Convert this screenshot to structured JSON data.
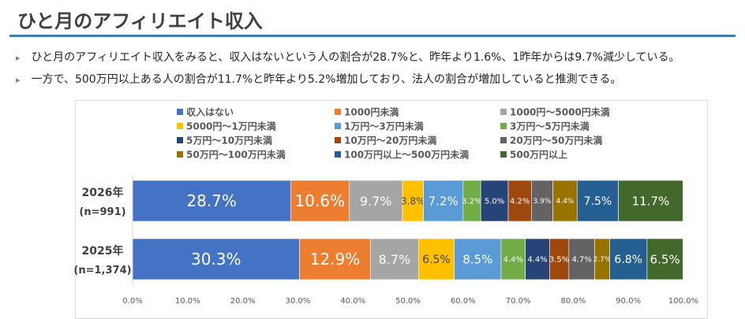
{
  "title": "ひと月のアフィリエイト収入",
  "bullets": [
    "ひと月のアフィリエイト収入をみると、収入はないという人の割合が28.7%と、昨年より1.6%、1昨年からは9.7%減少している。",
    "一方で、500万円以上ある人の割合が11.7%と昨年より5.2%増加しており、法人の割合が増加していると推測できる。"
  ],
  "bullet_mark": "▸",
  "chart_data": {
    "type": "bar",
    "orientation": "horizontal",
    "stacked": true,
    "categories": [
      {
        "label": "2026年",
        "sublabel": "(n=991)"
      },
      {
        "label": "2025年",
        "sublabel": "(n=1,374)"
      }
    ],
    "series": [
      {
        "name": "収入はない",
        "color": "#4472c4",
        "values": [
          28.7,
          30.3
        ],
        "label_color": "#ffffff",
        "label_size": [
          20,
          20
        ]
      },
      {
        "name": "1000円未満",
        "color": "#ed7d31",
        "values": [
          10.6,
          12.9
        ],
        "label_color": "#ffffff",
        "label_size": [
          20,
          20
        ]
      },
      {
        "name": "1000円～5000円未満",
        "color": "#a5a5a5",
        "values": [
          9.7,
          8.7
        ],
        "label_color": "#ffffff",
        "label_size": [
          16,
          16
        ]
      },
      {
        "name": "5000円～1万円未満",
        "color": "#ffc000",
        "values": [
          3.8,
          6.5
        ],
        "label_color": "#404040",
        "label_size": [
          12,
          14
        ]
      },
      {
        "name": "1万円～3万円未満",
        "color": "#5b9bd5",
        "values": [
          7.2,
          8.5
        ],
        "label_color": "#ffffff",
        "label_size": [
          15,
          15
        ]
      },
      {
        "name": "3万円～5万円未満",
        "color": "#70ad47",
        "values": [
          3.2,
          4.4
        ],
        "label_color": "#ffffff",
        "label_size": [
          10,
          10
        ]
      },
      {
        "name": "5万円～10万円未満",
        "color": "#264478",
        "values": [
          5.0,
          4.4
        ],
        "label_color": "#ffffff",
        "label_size": [
          10,
          10
        ]
      },
      {
        "name": "10万円～20万円未満",
        "color": "#9e480e",
        "values": [
          4.2,
          3.5
        ],
        "label_color": "#ffffff",
        "label_size": [
          10,
          10
        ]
      },
      {
        "name": "20万円～50万円未満",
        "color": "#636363",
        "values": [
          3.9,
          4.7
        ],
        "label_color": "#ffffff",
        "label_size": [
          9,
          10
        ]
      },
      {
        "name": "50万円～100万円未満",
        "color": "#997300",
        "values": [
          4.4,
          2.7
        ],
        "label_color": "#ffffff",
        "label_size": [
          9,
          9
        ]
      },
      {
        "name": "100万円以上～500万円未満",
        "color": "#255e91",
        "values": [
          7.5,
          6.8
        ],
        "label_color": "#ffffff",
        "label_size": [
          14,
          14
        ]
      },
      {
        "name": "500万円以上",
        "color": "#43682b",
        "values": [
          11.7,
          6.5
        ],
        "label_color": "#ffffff",
        "label_size": [
          15,
          15
        ]
      }
    ],
    "xlim": [
      0,
      100
    ],
    "x_ticks": [
      "0.0%",
      "10.0%",
      "20.0%",
      "30.0%",
      "40.0%",
      "50.0%",
      "60.0%",
      "70.0%",
      "80.0%",
      "90.0%",
      "100.0%"
    ],
    "legend_position": "top",
    "grid": false
  }
}
